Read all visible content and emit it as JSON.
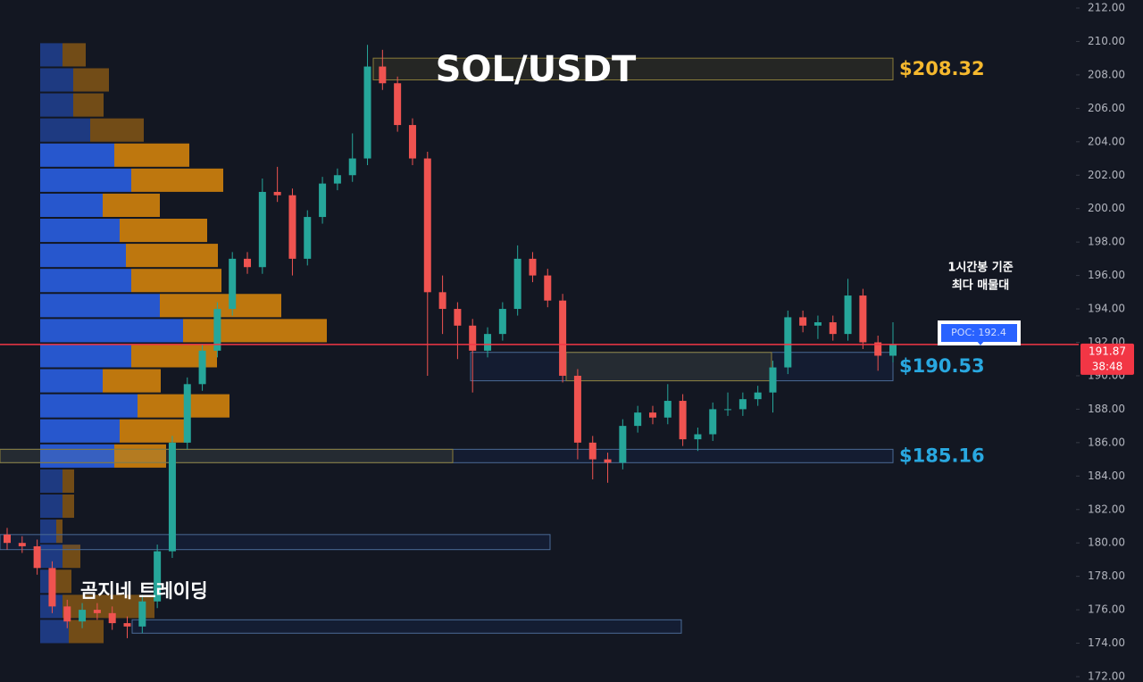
{
  "chart_data": {
    "type": "candlestick",
    "title": "SOL/USDT",
    "open": [
      180.5,
      180.0,
      179.8,
      178.5,
      176.2,
      175.3,
      176.0,
      175.8,
      175.2,
      175.0,
      176.5,
      179.5,
      186.0,
      189.5,
      191.5,
      194.0,
      197.0,
      196.5,
      201.0,
      200.8,
      197.0,
      199.5,
      201.5,
      202.0,
      203.0,
      208.5,
      207.5,
      205.0,
      203.0,
      195.0,
      194.0,
      193.0,
      191.5,
      192.5,
      194.0,
      197.0,
      196.0,
      194.5,
      190.0,
      186.0,
      185.0,
      184.8,
      187.0,
      187.8,
      187.5,
      188.5,
      186.2,
      186.5,
      188.0,
      188.0,
      188.6,
      189.0,
      190.5,
      193.5,
      193.0,
      193.2,
      192.5,
      194.8,
      192.0,
      191.2
    ],
    "high": [
      180.9,
      180.4,
      180.2,
      178.9,
      176.6,
      176.4,
      176.4,
      176.2,
      175.6,
      176.9,
      179.9,
      186.4,
      189.9,
      191.9,
      194.4,
      197.4,
      197.4,
      201.8,
      202.5,
      201.2,
      199.9,
      201.9,
      202.4,
      204.5,
      209.8,
      209.5,
      207.9,
      205.4,
      203.4,
      196.0,
      194.4,
      193.4,
      192.9,
      194.4,
      197.8,
      197.4,
      196.4,
      194.9,
      190.4,
      186.4,
      185.4,
      187.4,
      188.2,
      188.2,
      189.5,
      188.9,
      186.9,
      188.4,
      189.0,
      189.0,
      189.4,
      190.9,
      193.9,
      193.9,
      193.6,
      193.6,
      195.8,
      195.2,
      192.4,
      193.2
    ],
    "low": [
      179.6,
      179.4,
      178.1,
      175.8,
      174.9,
      174.9,
      175.4,
      174.8,
      174.3,
      174.6,
      176.1,
      179.1,
      185.6,
      189.1,
      191.1,
      193.6,
      196.1,
      196.1,
      200.4,
      196.0,
      196.6,
      199.1,
      201.1,
      201.6,
      202.6,
      207.1,
      204.6,
      202.6,
      190.0,
      192.5,
      191.0,
      189.0,
      191.1,
      192.1,
      193.6,
      195.6,
      194.1,
      189.6,
      185.0,
      183.8,
      183.6,
      184.4,
      186.6,
      187.1,
      187.1,
      185.8,
      185.5,
      186.1,
      187.6,
      187.6,
      188.2,
      187.8,
      190.1,
      192.6,
      192.2,
      192.1,
      192.1,
      191.6,
      190.3,
      190.8
    ],
    "close": [
      180.0,
      179.8,
      178.5,
      176.2,
      175.3,
      176.0,
      175.8,
      175.2,
      175.0,
      176.5,
      179.5,
      186.0,
      189.5,
      191.5,
      194.0,
      197.0,
      196.5,
      201.0,
      200.8,
      197.0,
      199.5,
      201.5,
      202.0,
      203.0,
      208.5,
      207.5,
      205.0,
      203.0,
      195.0,
      194.0,
      193.0,
      191.5,
      192.5,
      194.0,
      197.0,
      196.0,
      194.5,
      190.0,
      186.0,
      185.0,
      184.8,
      187.0,
      187.8,
      187.5,
      188.5,
      186.2,
      186.5,
      188.0,
      188.0,
      188.6,
      189.0,
      190.5,
      193.5,
      193.0,
      193.2,
      192.5,
      194.8,
      192.0,
      191.2,
      191.87
    ],
    "colors": {
      "up": "#26a69a",
      "down": "#ef5350"
    },
    "ylim": [
      172,
      212
    ],
    "yticks": [
      {
        "value": 172,
        "label": "172.00"
      },
      {
        "value": 174,
        "label": "174.00"
      },
      {
        "value": 176,
        "label": "176.00"
      },
      {
        "value": 178,
        "label": "178.00"
      },
      {
        "value": 180,
        "label": "180.00"
      },
      {
        "value": 182,
        "label": "182.00"
      },
      {
        "value": 184,
        "label": "184.00"
      },
      {
        "value": 186,
        "label": "186.00"
      },
      {
        "value": 188,
        "label": "188.00"
      },
      {
        "value": 190,
        "label": "190.00"
      },
      {
        "value": 192,
        "label": "192.00"
      },
      {
        "value": 194,
        "label": "194.00"
      },
      {
        "value": 196,
        "label": "196.00"
      },
      {
        "value": 198,
        "label": "198.00"
      },
      {
        "value": 200,
        "label": "200.00"
      },
      {
        "value": 202,
        "label": "202.00"
      },
      {
        "value": 204,
        "label": "204.00"
      },
      {
        "value": 206,
        "label": "206.00"
      },
      {
        "value": 208,
        "label": "208.00"
      },
      {
        "value": 210,
        "label": "210.00"
      },
      {
        "value": 212,
        "label": "212.00"
      }
    ],
    "last_price": {
      "value": 191.87,
      "countdown": "38:48",
      "color": "#f23645"
    },
    "levels": [
      {
        "label": "$208.32",
        "value": 208.32,
        "low": 207.7,
        "high": 209.0,
        "color": "#f5b82e"
      },
      {
        "label": "$190.53",
        "value": 190.53,
        "low": 189.7,
        "high": 191.4,
        "color": "#29a8e0"
      },
      {
        "label": "$185.16",
        "value": 185.16,
        "low": 184.8,
        "high": 185.6,
        "color": "#29a8e0"
      }
    ],
    "zones": [
      {
        "low": 179.6,
        "high": 180.5
      },
      {
        "low": 174.6,
        "high": 175.4
      }
    ],
    "volume_profile": {
      "prices": [
        209.2,
        207.7,
        206.2,
        204.7,
        203.2,
        201.7,
        200.2,
        198.7,
        197.2,
        195.7,
        194.2,
        192.7,
        191.2,
        189.7,
        188.2,
        186.7,
        185.2,
        183.7,
        182.2,
        180.7,
        179.2,
        177.7,
        176.2,
        174.7
      ],
      "buy": [
        25,
        37,
        37,
        56,
        83,
        102,
        70,
        89,
        96,
        102,
        134,
        160,
        102,
        70,
        109,
        89,
        83,
        25,
        25,
        18,
        25,
        13,
        25,
        32
      ],
      "sell": [
        26,
        40,
        34,
        60,
        84,
        103,
        64,
        98,
        103,
        101,
        136,
        161,
        96,
        65,
        103,
        78,
        58,
        13,
        13,
        7,
        20,
        22,
        103,
        39
      ],
      "colors": {
        "buy": "#2a5ee0",
        "sell": "#d1820c"
      }
    },
    "poc": {
      "label": "POC: 192.4",
      "value": 192.4
    },
    "annotation": [
      "1시간봉 기준",
      "최다 매물대"
    ],
    "watermark": "곰지네 트레이딩"
  }
}
